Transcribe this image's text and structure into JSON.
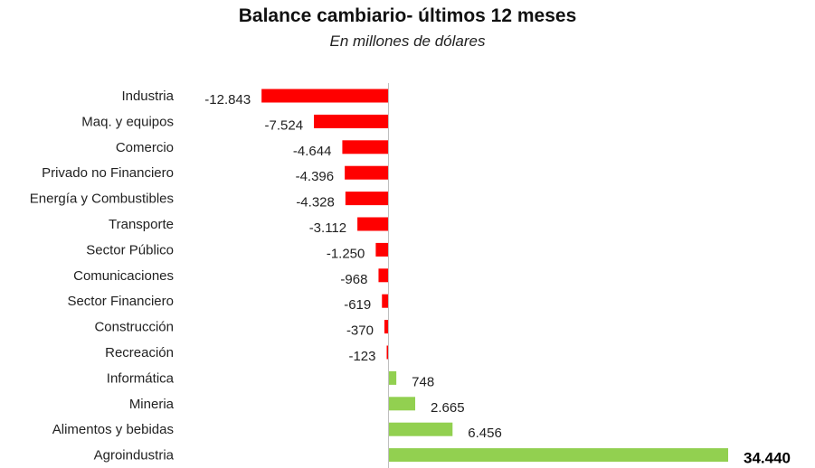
{
  "chart_data": {
    "type": "bar",
    "orientation": "horizontal",
    "title": "Balance cambiario- últimos 12 meses",
    "subtitle": "En millones de dólares",
    "categories": [
      "Industria",
      "Maq. y equipos",
      "Comercio",
      "Privado no Financiero",
      "Energía y Combustibles",
      "Transporte",
      "Sector Público",
      "Comunicaciones",
      "Sector Financiero",
      "Construcción",
      "Recreación",
      "Informática",
      "Mineria",
      "Alimentos y bebidas",
      "Agroindustria"
    ],
    "values": [
      -12843,
      -7524,
      -4644,
      -4396,
      -4328,
      -3112,
      -1250,
      -968,
      -619,
      -370,
      -123,
      748,
      2665,
      6456,
      34440
    ],
    "value_labels": [
      "-12.843",
      "-7.524",
      "-4.644",
      "-4.396",
      "-4.328",
      "-3.112",
      "-1.250",
      "-968",
      "-619",
      "-370",
      "-123",
      "748",
      "2.665",
      "6.456",
      "34.440"
    ],
    "colors": {
      "negative": "#ff0000",
      "positive": "#92d050"
    },
    "grid": false,
    "legend": "none"
  }
}
